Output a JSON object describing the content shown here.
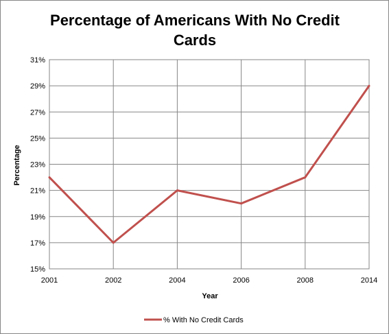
{
  "chart_data": {
    "type": "line",
    "title_lines": [
      "Percentage of Americans With No Credit",
      "Cards"
    ],
    "xlabel": "Year",
    "ylabel": "Percentage",
    "categories": [
      "2001",
      "2002",
      "2004",
      "2006",
      "2008",
      "2014"
    ],
    "series": [
      {
        "name": "% With No Credit Cards",
        "values": [
          22,
          17,
          21,
          20,
          22,
          29
        ],
        "color": "#c0504d"
      }
    ],
    "ylim": [
      15,
      31
    ],
    "y_ticks": [
      "15%",
      "17%",
      "19%",
      "21%",
      "23%",
      "25%",
      "27%",
      "29%",
      "31%"
    ],
    "grid": true,
    "legend_position": "bottom"
  }
}
